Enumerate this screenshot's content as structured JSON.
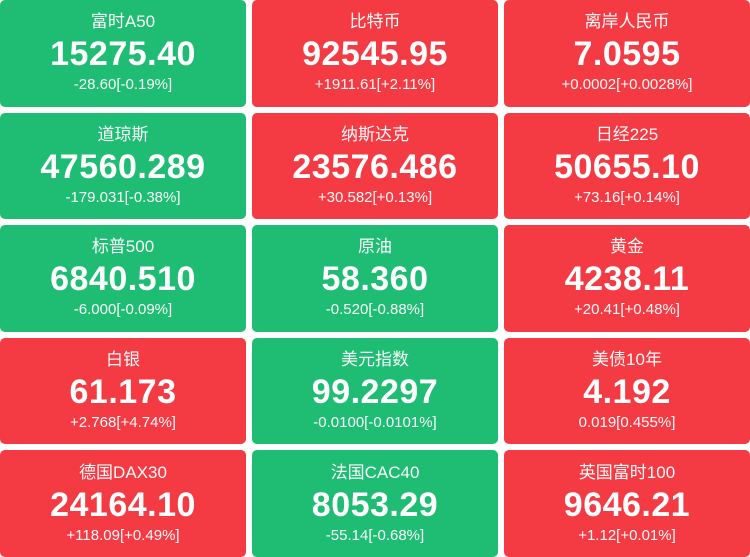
{
  "page": {
    "background": "#ffffff"
  },
  "colors": {
    "up_bg": "#f43b44",
    "down_bg": "#1fbc73",
    "text": "#ffffff"
  },
  "tiles": [
    {
      "label": "富时A50",
      "value": "15275.40",
      "change": "-28.60[-0.19%]",
      "direction": "down"
    },
    {
      "label": "比特币",
      "value": "92545.95",
      "change": "+1911.61[+2.11%]",
      "direction": "up"
    },
    {
      "label": "离岸人民币",
      "value": "7.0595",
      "change": "+0.0002[+0.0028%]",
      "direction": "up"
    },
    {
      "label": "道琼斯",
      "value": "47560.289",
      "change": "-179.031[-0.38%]",
      "direction": "down"
    },
    {
      "label": "纳斯达克",
      "value": "23576.486",
      "change": "+30.582[+0.13%]",
      "direction": "up"
    },
    {
      "label": "日经225",
      "value": "50655.10",
      "change": "+73.16[+0.14%]",
      "direction": "up"
    },
    {
      "label": "标普500",
      "value": "6840.510",
      "change": "-6.000[-0.09%]",
      "direction": "down"
    },
    {
      "label": "原油",
      "value": "58.360",
      "change": "-0.520[-0.88%]",
      "direction": "down"
    },
    {
      "label": "黄金",
      "value": "4238.11",
      "change": "+20.41[+0.48%]",
      "direction": "up"
    },
    {
      "label": "白银",
      "value": "61.173",
      "change": "+2.768[+4.74%]",
      "direction": "up"
    },
    {
      "label": "美元指数",
      "value": "99.2297",
      "change": "-0.0100[-0.0101%]",
      "direction": "down"
    },
    {
      "label": "美债10年",
      "value": "4.192",
      "change": "0.019[0.455%]",
      "direction": "up"
    },
    {
      "label": "德国DAX30",
      "value": "24164.10",
      "change": "+118.09[+0.49%]",
      "direction": "up"
    },
    {
      "label": "法国CAC40",
      "value": "8053.29",
      "change": "-55.14[-0.68%]",
      "direction": "down"
    },
    {
      "label": "英国富时100",
      "value": "9646.21",
      "change": "+1.12[+0.01%]",
      "direction": "up"
    }
  ]
}
